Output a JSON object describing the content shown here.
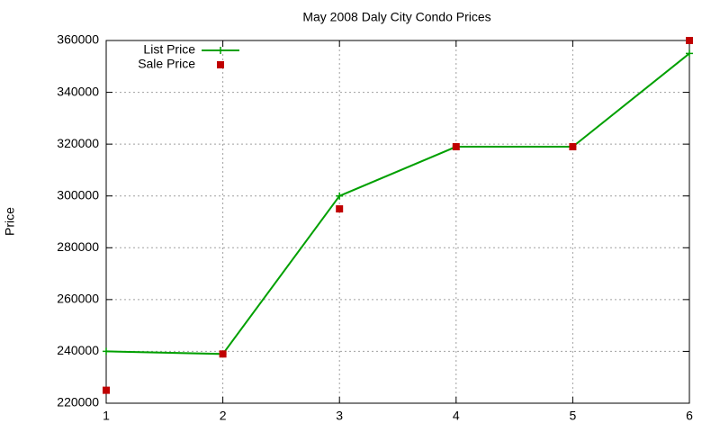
{
  "chart_data": {
    "type": "line",
    "title": "May 2008 Daly City Condo Prices",
    "ylabel": "Price",
    "x": [
      1,
      2,
      3,
      4,
      5,
      6
    ],
    "series": [
      {
        "name": "List Price",
        "color": "#00a000",
        "style": "linespoints",
        "values": [
          240000,
          239000,
          300000,
          319000,
          319000,
          355000
        ]
      },
      {
        "name": "Sale Price",
        "color": "#c00000",
        "style": "points",
        "values": [
          225000,
          239000,
          295000,
          319000,
          319000,
          360000
        ]
      }
    ],
    "xlim": [
      1,
      6
    ],
    "xticks": [
      1,
      2,
      3,
      4,
      5,
      6
    ],
    "ylim": [
      220000,
      360000
    ],
    "yticks": [
      220000,
      240000,
      260000,
      280000,
      300000,
      320000,
      340000,
      360000
    ],
    "grid": true,
    "legend": "top left"
  }
}
